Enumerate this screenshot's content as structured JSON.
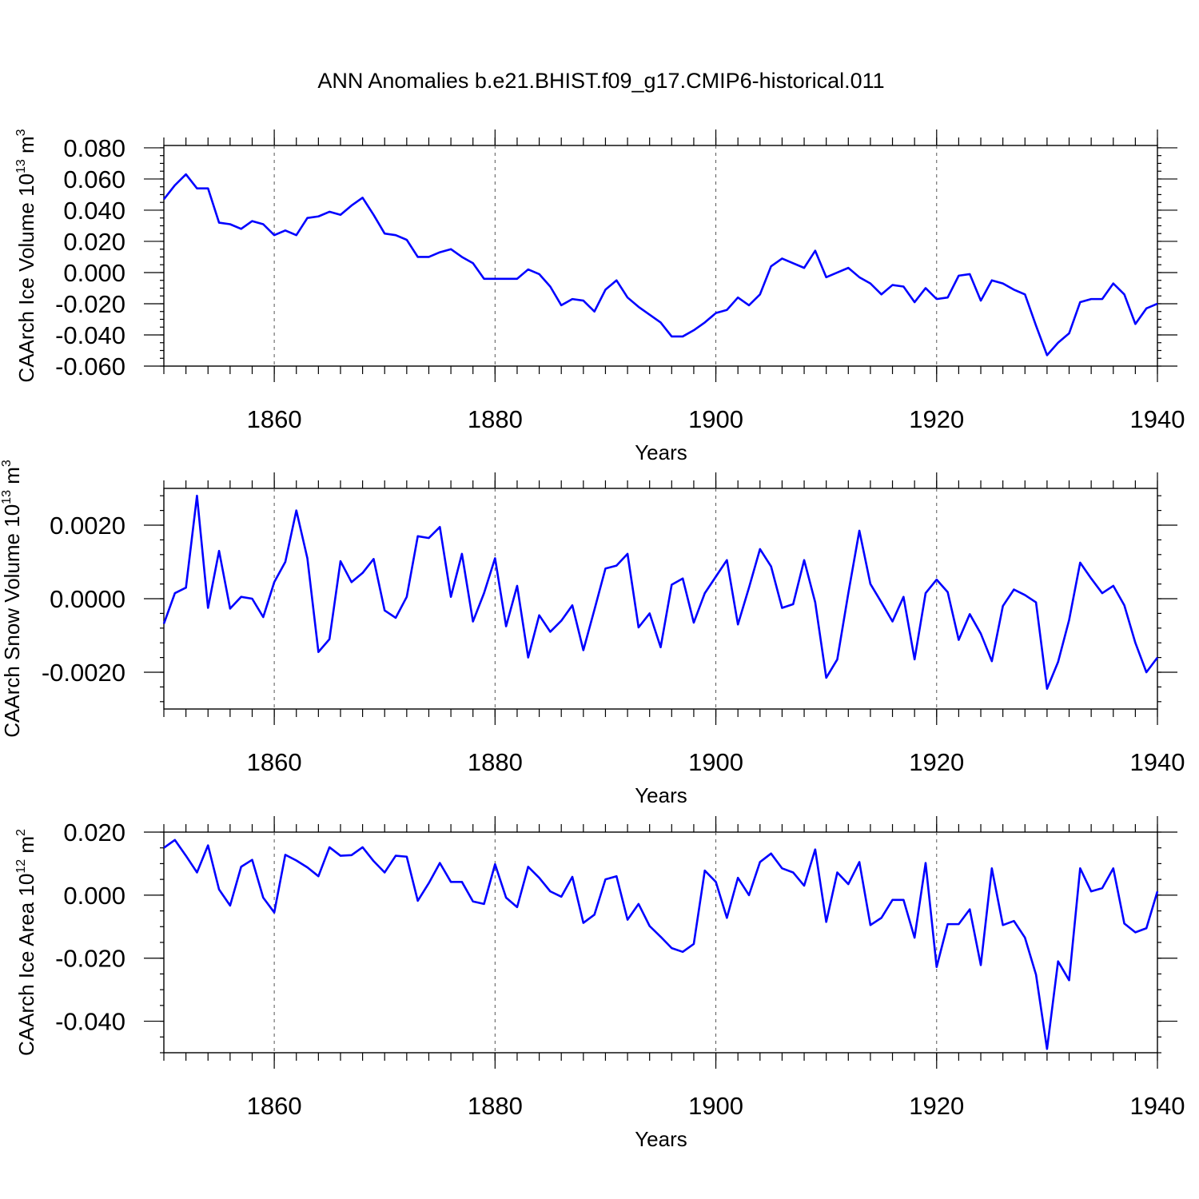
{
  "chart_data": {
    "type": "line",
    "title": "ANN Anomalies b.e21.BHIST.f09_g17.CMIP6-historical.011",
    "line_color": "#0000ff",
    "panels": [
      {
        "id": "ice-volume",
        "ylabel_main": "CAArch Ice Volume 10",
        "ylabel_exp": "13",
        "ylabel_unit": " m",
        "ylabel_unit_exp": "3",
        "xlabel": "Years",
        "xlim": [
          1850,
          1940
        ],
        "ylim": [
          -0.06,
          0.0815
        ],
        "yticks": [
          -0.06,
          -0.04,
          -0.02,
          0.0,
          0.02,
          0.04,
          0.06,
          0.08
        ],
        "ytick_labels": [
          "-0.060",
          "-0.040",
          "-0.020",
          "0.000",
          "0.020",
          "0.040",
          "0.060",
          "0.080"
        ],
        "yminor_step": 0.005,
        "xticks": [
          1860,
          1880,
          1900,
          1920,
          1940
        ],
        "xtick_labels": [
          "1860",
          "1880",
          "1900",
          "1920",
          "1940"
        ],
        "xstart": 1850,
        "values": [
          0.047,
          0.056,
          0.063,
          0.054,
          0.054,
          0.032,
          0.031,
          0.028,
          0.033,
          0.031,
          0.024,
          0.027,
          0.024,
          0.035,
          0.036,
          0.039,
          0.037,
          0.043,
          0.048,
          0.037,
          0.025,
          0.024,
          0.021,
          0.01,
          0.01,
          0.013,
          0.015,
          0.01,
          0.006,
          -0.004,
          -0.004,
          -0.004,
          -0.004,
          0.002,
          -0.001,
          -0.009,
          -0.021,
          -0.017,
          -0.018,
          -0.025,
          -0.011,
          -0.005,
          -0.016,
          -0.022,
          -0.027,
          -0.032,
          -0.041,
          -0.041,
          -0.037,
          -0.032,
          -0.026,
          -0.024,
          -0.016,
          -0.021,
          -0.014,
          0.004,
          0.009,
          0.006,
          0.003,
          0.014,
          -0.003,
          0.0,
          0.003,
          -0.003,
          -0.007,
          -0.014,
          -0.008,
          -0.009,
          -0.019,
          -0.01,
          -0.017,
          -0.016,
          -0.002,
          -0.001,
          -0.018,
          -0.005,
          -0.007,
          -0.011,
          -0.014,
          -0.034,
          -0.053,
          -0.045,
          -0.039,
          -0.019,
          -0.017,
          -0.017,
          -0.007,
          -0.014,
          -0.033,
          -0.023,
          -0.02
        ]
      },
      {
        "id": "snow-volume",
        "ylabel_main": "CAArch Snow Volume 10",
        "ylabel_exp": "13",
        "ylabel_unit": " m",
        "ylabel_unit_exp": "3",
        "xlabel": "Years",
        "xlim": [
          1850,
          1940
        ],
        "ylim": [
          -0.003,
          0.003
        ],
        "yticks": [
          -0.002,
          0.0,
          0.002
        ],
        "ytick_labels": [
          "-0.0020",
          "0.0000",
          "0.0020"
        ],
        "yminor_step": 0.0004,
        "xticks": [
          1860,
          1880,
          1900,
          1920,
          1940
        ],
        "xtick_labels": [
          "1860",
          "1880",
          "1900",
          "1920",
          "1940"
        ],
        "xstart": 1850,
        "values": [
          -0.00068,
          0.00015,
          0.0003,
          0.0028,
          -0.00025,
          0.0013,
          -0.00027,
          5e-05,
          0.0,
          -0.0005,
          0.00045,
          0.001,
          0.0024,
          0.0011,
          -0.00145,
          -0.0011,
          0.00102,
          0.00045,
          0.0007,
          0.00108,
          -0.00032,
          -0.00052,
          5e-05,
          0.0017,
          0.00165,
          0.00195,
          5e-05,
          0.00122,
          -0.00062,
          0.00015,
          0.0011,
          -0.00075,
          0.00035,
          -0.0016,
          -0.00045,
          -0.0009,
          -0.0006,
          -0.00018,
          -0.0014,
          -0.0003,
          0.00082,
          0.0009,
          0.00122,
          -0.00078,
          -0.0004,
          -0.00132,
          0.00038,
          0.00055,
          -0.00065,
          0.00015,
          0.0006,
          0.00105,
          -0.0007,
          0.0003,
          0.00135,
          0.00088,
          -0.00025,
          -0.00015,
          0.00105,
          -0.0001,
          -0.00215,
          -0.00165,
          0.00015,
          0.00185,
          0.0004,
          -0.0001,
          -0.00062,
          5e-05,
          -0.00165,
          0.00015,
          0.00052,
          0.00018,
          -0.00112,
          -0.00042,
          -0.00095,
          -0.0017,
          -0.0002,
          0.00025,
          0.0001,
          -0.0001,
          -0.00245,
          -0.00172,
          -0.00058,
          0.00098,
          0.00055,
          0.00015,
          0.00035,
          -0.00018,
          -0.0012,
          -0.002,
          -0.0016
        ]
      },
      {
        "id": "ice-area",
        "ylabel_main": "CAArch Ice Area 10",
        "ylabel_exp": "12",
        "ylabel_unit": " m",
        "ylabel_unit_exp": "2",
        "xlabel": "Years",
        "xlim": [
          1850,
          1940
        ],
        "ylim": [
          -0.05,
          0.02
        ],
        "yticks": [
          -0.04,
          -0.02,
          0.0,
          0.02
        ],
        "ytick_labels": [
          "-0.040",
          "-0.020",
          "0.000",
          "0.020"
        ],
        "yminor_step": 0.005,
        "xticks": [
          1860,
          1880,
          1900,
          1920,
          1940
        ],
        "xtick_labels": [
          "1860",
          "1880",
          "1900",
          "1920",
          "1940"
        ],
        "xstart": 1850,
        "values": [
          0.015,
          0.0175,
          0.0125,
          0.0072,
          0.0158,
          0.0018,
          -0.0033,
          0.009,
          0.0112,
          -0.0008,
          -0.0055,
          0.0128,
          0.011,
          0.0088,
          0.006,
          0.0152,
          0.0125,
          0.0127,
          0.0152,
          0.0108,
          0.0072,
          0.0125,
          0.0122,
          -0.0018,
          0.0038,
          0.0102,
          0.0042,
          0.0042,
          -0.002,
          -0.0028,
          0.0098,
          -0.0008,
          -0.0038,
          0.009,
          0.0055,
          0.0012,
          -0.0005,
          0.0058,
          -0.0088,
          -0.0062,
          0.005,
          0.006,
          -0.0078,
          -0.0028,
          -0.0098,
          -0.0132,
          -0.0168,
          -0.018,
          -0.0155,
          0.0078,
          0.0042,
          -0.0072,
          0.0055,
          0.0,
          0.0105,
          0.0132,
          0.0085,
          0.0072,
          0.003,
          0.0145,
          -0.0085,
          0.0072,
          0.0035,
          0.0105,
          -0.0095,
          -0.0072,
          -0.0015,
          -0.0015,
          -0.0135,
          0.0102,
          -0.0228,
          -0.0092,
          -0.0092,
          -0.0045,
          -0.0222,
          0.0085,
          -0.0095,
          -0.0082,
          -0.0135,
          -0.0252,
          -0.0488,
          -0.021,
          -0.027,
          0.0085,
          0.0012,
          0.0022,
          0.0085,
          -0.009,
          -0.0118,
          -0.0105,
          0.0012
        ]
      }
    ]
  }
}
